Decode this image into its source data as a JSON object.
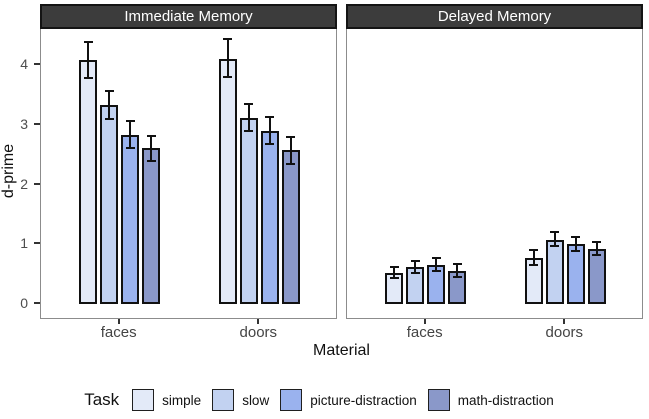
{
  "chart_data": {
    "type": "bar",
    "title": "",
    "xlabel": "Material",
    "ylabel": "d-prime",
    "legend_title": "Task",
    "legend_position": "bottom",
    "yticks": [
      0,
      1,
      2,
      3,
      4
    ],
    "ylim": [
      -0.23,
      4.6
    ],
    "grid": "off",
    "categories": [
      "faces",
      "doors"
    ],
    "tasks": [
      {
        "name": "simple",
        "color": "#E3EAF8"
      },
      {
        "name": "slow",
        "color": "#C2D2F1"
      },
      {
        "name": "picture-distraction",
        "color": "#9AB2EE"
      },
      {
        "name": "math-distraction",
        "color": "#8A98C9"
      }
    ],
    "error_bars": "95% CI",
    "facets": [
      {
        "label": "Immediate Memory",
        "groups": [
          {
            "category": "faces",
            "bars": [
              {
                "task": "simple",
                "value": 4.08,
                "ci": [
                  3.78,
                  4.38
                ]
              },
              {
                "task": "slow",
                "value": 3.33,
                "ci": [
                  3.1,
                  3.57
                ]
              },
              {
                "task": "picture-distraction",
                "value": 2.83,
                "ci": [
                  2.61,
                  3.06
                ]
              },
              {
                "task": "math-distraction",
                "value": 2.61,
                "ci": [
                  2.4,
                  2.82
                ]
              }
            ]
          },
          {
            "category": "doors",
            "bars": [
              {
                "task": "simple",
                "value": 4.1,
                "ci": [
                  3.8,
                  4.43
                ]
              },
              {
                "task": "slow",
                "value": 3.12,
                "ci": [
                  2.89,
                  3.35
                ]
              },
              {
                "task": "picture-distraction",
                "value": 2.9,
                "ci": [
                  2.67,
                  3.13
                ]
              },
              {
                "task": "math-distraction",
                "value": 2.57,
                "ci": [
                  2.35,
                  2.79
                ]
              }
            ]
          }
        ]
      },
      {
        "label": "Delayed Memory",
        "groups": [
          {
            "category": "faces",
            "bars": [
              {
                "task": "simple",
                "value": 0.53,
                "ci": [
                  0.44,
                  0.62
                ]
              },
              {
                "task": "slow",
                "value": 0.63,
                "ci": [
                  0.53,
                  0.73
                ]
              },
              {
                "task": "picture-distraction",
                "value": 0.66,
                "ci": [
                  0.55,
                  0.78
                ]
              },
              {
                "task": "math-distraction",
                "value": 0.56,
                "ci": [
                  0.45,
                  0.67
                ]
              }
            ]
          },
          {
            "category": "doors",
            "bars": [
              {
                "task": "simple",
                "value": 0.78,
                "ci": [
                  0.66,
                  0.9
                ]
              },
              {
                "task": "slow",
                "value": 1.08,
                "ci": [
                  0.97,
                  1.2
                ]
              },
              {
                "task": "picture-distraction",
                "value": 1.01,
                "ci": [
                  0.89,
                  1.13
                ]
              },
              {
                "task": "math-distraction",
                "value": 0.93,
                "ci": [
                  0.82,
                  1.04
                ]
              }
            ]
          }
        ]
      }
    ]
  }
}
